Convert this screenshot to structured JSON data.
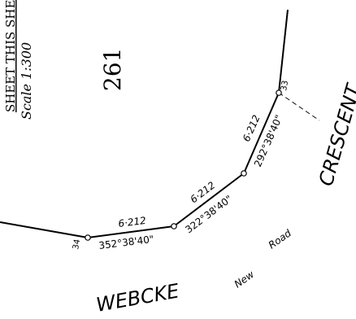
{
  "scale_header": "SHEET THIS SHEET",
  "scale": "Scale 1:300",
  "lot_number": "261",
  "roads": {
    "crescent": "CRESCENT",
    "webcke": "WEBCKE",
    "new_road_1": "New",
    "new_road_2": "Road"
  },
  "stations": {
    "left": "34",
    "right": "33"
  },
  "segments": [
    {
      "distance": "6·212",
      "bearing": "352°38'40\""
    },
    {
      "distance": "6·212",
      "bearing": "322°38'40\""
    },
    {
      "distance": "6·212",
      "bearing": "292°38'40\""
    }
  ]
}
